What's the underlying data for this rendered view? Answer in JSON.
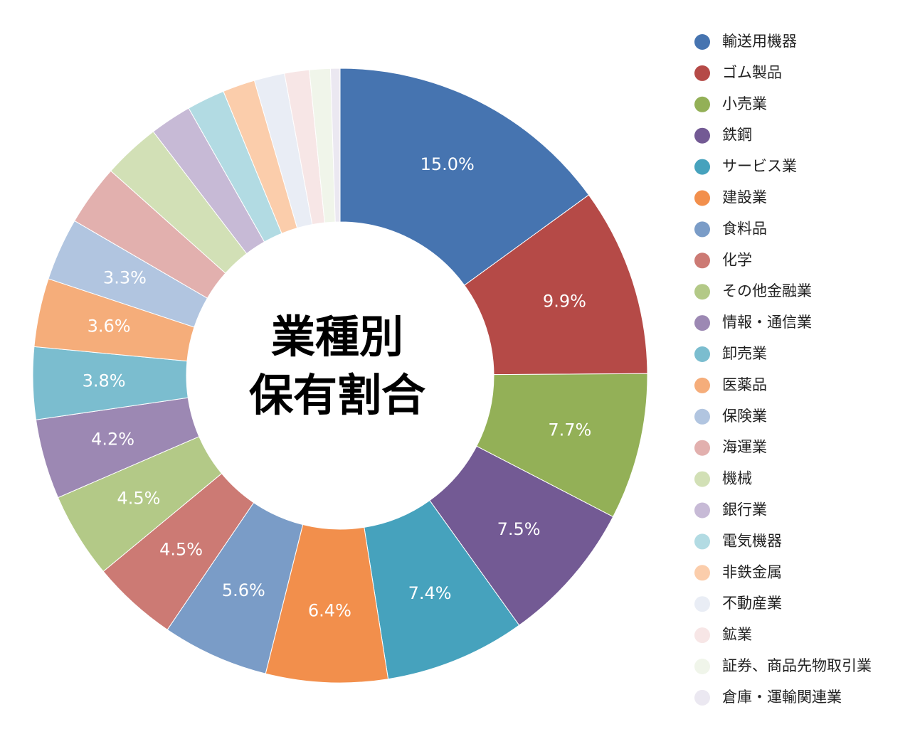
{
  "chart_data": {
    "type": "donut",
    "title": [
      "業種別",
      "保有割合"
    ],
    "categories": [
      "輸送用機器",
      "ゴム製品",
      "小売業",
      "鉄鋼",
      "サービス業",
      "建設業",
      "食料品",
      "化学",
      "その他金融業",
      "情報・通信業",
      "卸売業",
      "医薬品",
      "保険業",
      "海運業",
      "機械",
      "銀行業",
      "電気機器",
      "非鉄金属",
      "不動産業",
      "鉱業",
      "証券、商品先物取引業",
      "倉庫・運輸関連業"
    ],
    "values": [
      15.0,
      9.9,
      7.7,
      7.5,
      7.4,
      6.4,
      5.6,
      4.5,
      4.5,
      4.2,
      3.8,
      3.6,
      3.3,
      3.2,
      3.0,
      2.2,
      2.0,
      1.7,
      1.6,
      1.3,
      1.1,
      0.5
    ],
    "value_labels": [
      "15.0%",
      "9.9%",
      "7.7%",
      "7.5%",
      "7.4%",
      "6.4%",
      "5.6%",
      "4.5%",
      "4.5%",
      "4.2%",
      "3.8%",
      "3.6%",
      "3.3%",
      null,
      null,
      null,
      null,
      null,
      null,
      null,
      null,
      null
    ],
    "colors": [
      "#4674b0",
      "#b54a47",
      "#93b057",
      "#735a94",
      "#46a2bd",
      "#f28f4c",
      "#7a9cc7",
      "#cc7a74",
      "#b3c987",
      "#9c88b3",
      "#7bbdcf",
      "#f5ad7a",
      "#b1c5e0",
      "#e2b0ae",
      "#d2e0b6",
      "#c7bad6",
      "#b2dbe3",
      "#fbcdab",
      "#e9edf5",
      "#f7e6e6",
      "#f0f5ea",
      "#ebe8f1"
    ],
    "legend": "right"
  }
}
